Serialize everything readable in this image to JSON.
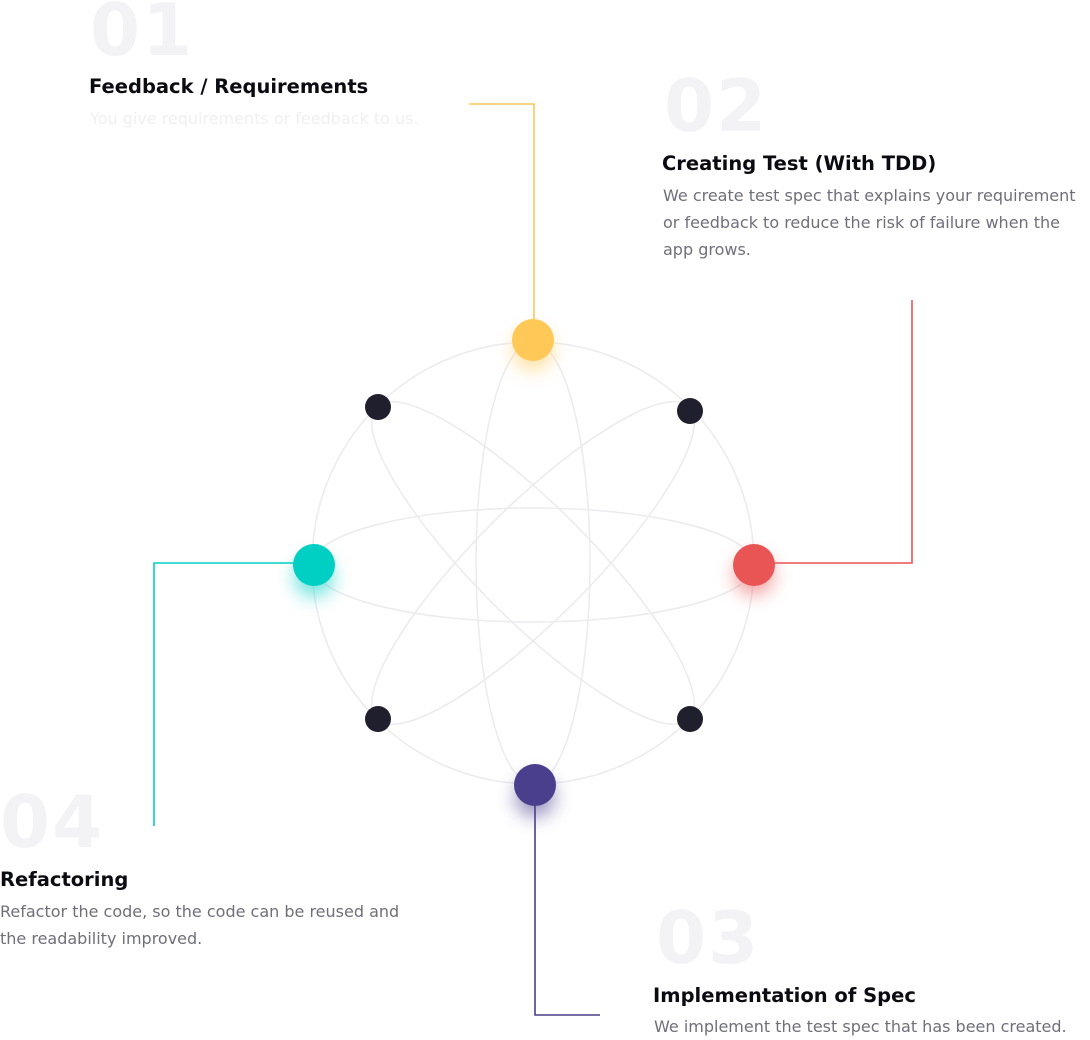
{
  "steps": [
    {
      "number": "01",
      "title": "Feedback / Requirements",
      "description": "You give requirements or feedback to us.",
      "color": "#FFC857"
    },
    {
      "number": "02",
      "title": "Creating Test (With TDD)",
      "description": "We create test spec that explains your requirement or feedback to reduce the risk of failure when the app grows.",
      "color": "#E95454"
    },
    {
      "number": "03",
      "title": "Implementation of Spec",
      "description": "We implement the test spec that has been created.",
      "color": "#4A3F8C"
    },
    {
      "number": "04",
      "title": "Refactoring",
      "description": "Refactor the code, so the code can be reused and the readability improved.",
      "color": "#00CFC4"
    }
  ],
  "colors": {
    "orbit": "#ececee",
    "satellite": "#1f1f2e",
    "number": "#f3f3f5",
    "title": "#0b0b12",
    "description": "#6f6f7b"
  }
}
